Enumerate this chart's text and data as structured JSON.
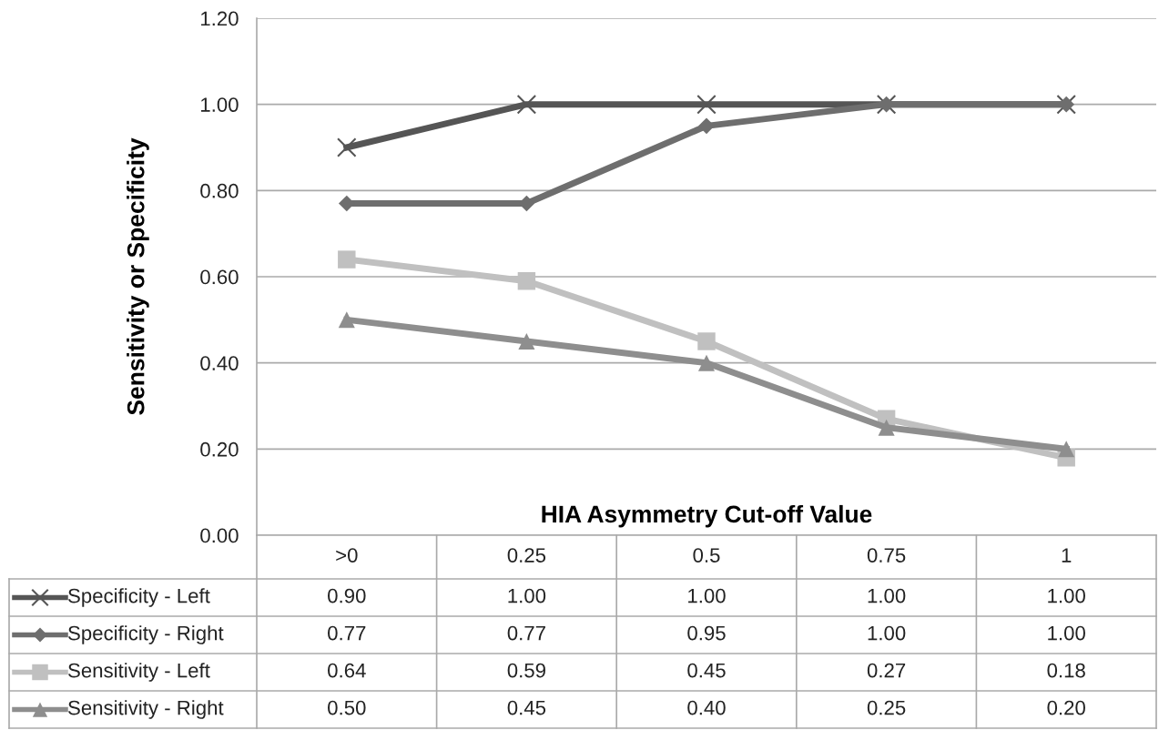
{
  "chart_data": {
    "type": "line",
    "xlabel": "HIA Asymmetry Cut-off Value",
    "ylabel": "Sensitivity or Specificity",
    "categories": [
      ">0",
      "0.25",
      "0.5",
      "0.75",
      "1"
    ],
    "series": [
      {
        "name": "Specificity - Left",
        "color": "#555555",
        "marker": "cross",
        "values": [
          0.9,
          1.0,
          1.0,
          1.0,
          1.0
        ],
        "value_labels": [
          "0.90",
          "1.00",
          "1.00",
          "1.00",
          "1.00"
        ]
      },
      {
        "name": "Specificity - Right",
        "color": "#6e6e6e",
        "marker": "diamond",
        "values": [
          0.77,
          0.77,
          0.95,
          1.0,
          1.0
        ],
        "value_labels": [
          "0.77",
          "0.77",
          "0.95",
          "1.00",
          "1.00"
        ]
      },
      {
        "name": "Sensitivity - Left",
        "color": "#c0c0c0",
        "marker": "square",
        "values": [
          0.64,
          0.59,
          0.45,
          0.27,
          0.18
        ],
        "value_labels": [
          "0.64",
          "0.59",
          "0.45",
          "0.27",
          "0.18"
        ]
      },
      {
        "name": "Sensitivity - Right",
        "color": "#8e8e8e",
        "marker": "triangle",
        "values": [
          0.5,
          0.45,
          0.4,
          0.25,
          0.2
        ],
        "value_labels": [
          "0.50",
          "0.45",
          "0.40",
          "0.25",
          "0.20"
        ]
      }
    ],
    "ylim": [
      0,
      1.2
    ],
    "yticks": [
      {
        "value": 0,
        "label": "0.00"
      },
      {
        "value": 0.2,
        "label": "0.20"
      },
      {
        "value": 0.4,
        "label": "0.40"
      },
      {
        "value": 0.6,
        "label": "0.60"
      },
      {
        "value": 0.8,
        "label": "0.80"
      },
      {
        "value": 1.0,
        "label": "1.00"
      },
      {
        "value": 1.2,
        "label": "1.20"
      }
    ],
    "grid": "y",
    "tick_labels": "y",
    "legend": "bottom",
    "line_style": "solid"
  }
}
